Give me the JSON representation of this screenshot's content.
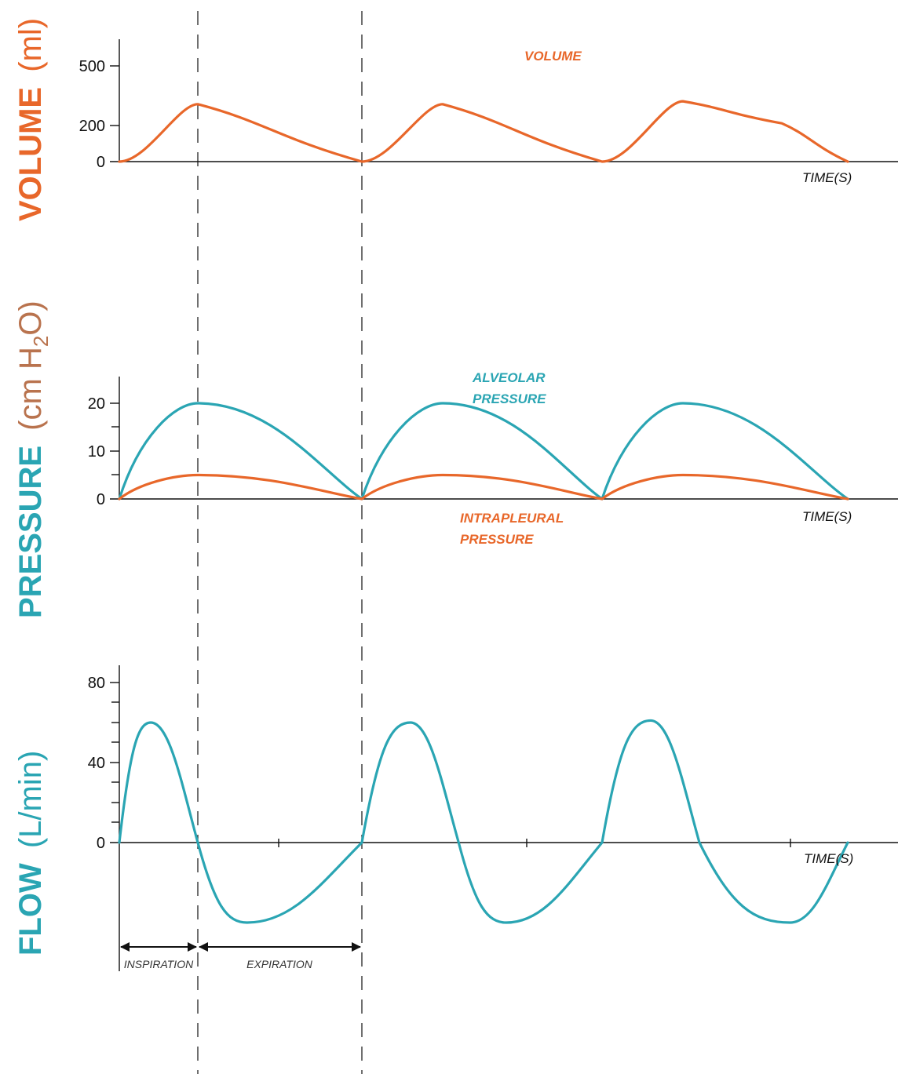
{
  "colors": {
    "orange": "#E8672A",
    "teal": "#2AA5B3",
    "green_gray": "#6E8C80",
    "brown": "#B9734E",
    "axis": "#111111"
  },
  "chart_data": [
    {
      "type": "line",
      "title": "",
      "ylabel": "VOLUME (ml)",
      "xlabel": "TIME(S)",
      "ylim": [
        0,
        500
      ],
      "y_ticks": [
        0,
        200,
        500
      ],
      "series": [
        {
          "name": "VOLUME",
          "color": "#E8672A",
          "points": [
            [
              0,
              0
            ],
            [
              1,
              300
            ],
            [
              3,
              0
            ],
            [
              4,
              300
            ],
            [
              6,
              0
            ],
            [
              7,
              315
            ],
            [
              8.2,
              200
            ],
            [
              9,
              0
            ]
          ]
        }
      ]
    },
    {
      "type": "line",
      "title": "",
      "ylabel": "PRESSURE (cm H2O)",
      "xlabel": "TIME(S)",
      "ylim": [
        0,
        25
      ],
      "y_ticks": [
        0,
        10,
        20
      ],
      "series": [
        {
          "name": "ALVEOLAR PRESSURE",
          "color": "#2AA5B3",
          "points": [
            [
              0,
              0
            ],
            [
              1,
              20
            ],
            [
              3,
              0
            ],
            [
              4,
              20
            ],
            [
              6,
              0
            ],
            [
              7,
              20
            ],
            [
              9,
              0
            ]
          ]
        },
        {
          "name": "INTRAPLEURAL PRESSURE",
          "color": "#E8672A",
          "points": [
            [
              0,
              0
            ],
            [
              1,
              5
            ],
            [
              3,
              0
            ],
            [
              4,
              5
            ],
            [
              6,
              0
            ],
            [
              7,
              5
            ],
            [
              9,
              0
            ]
          ]
        }
      ]
    },
    {
      "type": "line",
      "title": "",
      "ylabel": "FLOW (L/min)",
      "xlabel": "TIME(S)",
      "ylim": [
        -60,
        80
      ],
      "y_ticks": [
        0,
        40,
        80
      ],
      "series": [
        {
          "name": "",
          "color": "#2AA5B3",
          "points": [
            [
              0,
              0
            ],
            [
              0.4,
              60
            ],
            [
              1,
              0
            ],
            [
              1.6,
              -40
            ],
            [
              3,
              0
            ],
            [
              3.6,
              60
            ],
            [
              4.2,
              0
            ],
            [
              4.8,
              -40
            ],
            [
              6,
              0
            ],
            [
              6.6,
              61
            ],
            [
              7.2,
              0
            ],
            [
              8.3,
              -40
            ],
            [
              9,
              0
            ]
          ]
        }
      ]
    }
  ],
  "labels": {
    "volume_title_main": "VOLUME",
    "volume_title_unit": "(ml)",
    "pressure_title_main": "PRESSURE",
    "pressure_title_unit_open": "(cm H",
    "pressure_title_unit_sub": "2",
    "pressure_title_unit_close": "O)",
    "flow_title_main": "FLOW",
    "flow_title_unit": "(L/min)",
    "volume_series": "VOLUME",
    "alveolar_line1": "ALVEOLAR",
    "alveolar_line2": "PRESSURE",
    "intrapleural_line1": "INTRAPLEURAL",
    "intrapleural_line2": "PRESSURE",
    "time": "TIME(S)",
    "inspiration": "INSPIRATION",
    "expiration": "EXPIRATION",
    "vol_ticks": [
      "500",
      "200",
      "0"
    ],
    "pres_ticks": [
      "20",
      "10",
      "0"
    ],
    "flow_ticks": [
      "80",
      "40",
      "0"
    ]
  }
}
